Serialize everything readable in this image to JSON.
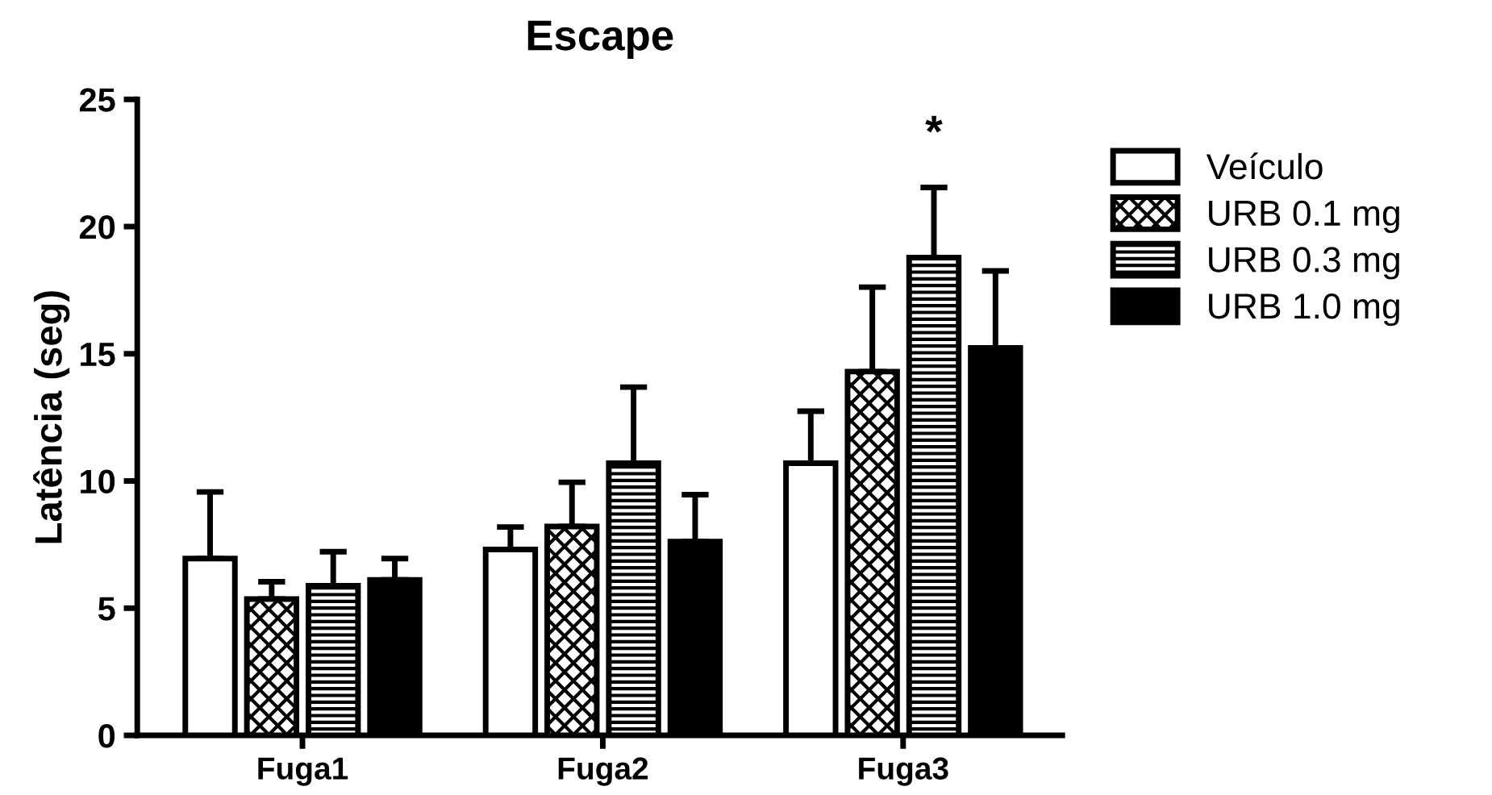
{
  "chart_data": {
    "type": "bar",
    "title": "Escape",
    "ylabel": "Latência (seg)",
    "categories": [
      "Fuga1",
      "Fuga2",
      "Fuga3"
    ],
    "series": [
      {
        "name": "Veículo",
        "color": "#ffffff",
        "values": [
          6.95,
          7.31,
          10.7
        ],
        "errors": [
          [
            6.95,
            9.57
          ],
          [
            7.31,
            8.19
          ],
          [
            10.7,
            12.74
          ]
        ]
      },
      {
        "name": "URB 0.1 mg",
        "color": "#000000",
        "values": [
          5.36,
          8.21,
          14.3
        ],
        "errors": [
          [
            5.36,
            6.04
          ],
          [
            8.21,
            9.95
          ],
          [
            14.3,
            17.62
          ]
        ]
      },
      {
        "name": "URB 0.3 mg",
        "color": "#000000",
        "values": [
          5.88,
          10.7,
          18.78
        ],
        "errors": [
          [
            5.88,
            7.22
          ],
          [
            10.7,
            13.69
          ],
          [
            18.78,
            21.54
          ]
        ]
      },
      {
        "name": "URB 1.0 mg",
        "color": "#000000",
        "values": [
          6.11,
          7.62,
          15.23
        ],
        "errors": [
          [
            6.11,
            6.95
          ],
          [
            7.62,
            9.46
          ],
          [
            15.23,
            18.26
          ]
        ]
      }
    ],
    "ylim": [
      0,
      25
    ],
    "yticks": [
      0,
      5,
      10,
      15,
      20,
      25
    ],
    "grid": false,
    "legend": "right",
    "annotations": [
      "*"
    ]
  }
}
